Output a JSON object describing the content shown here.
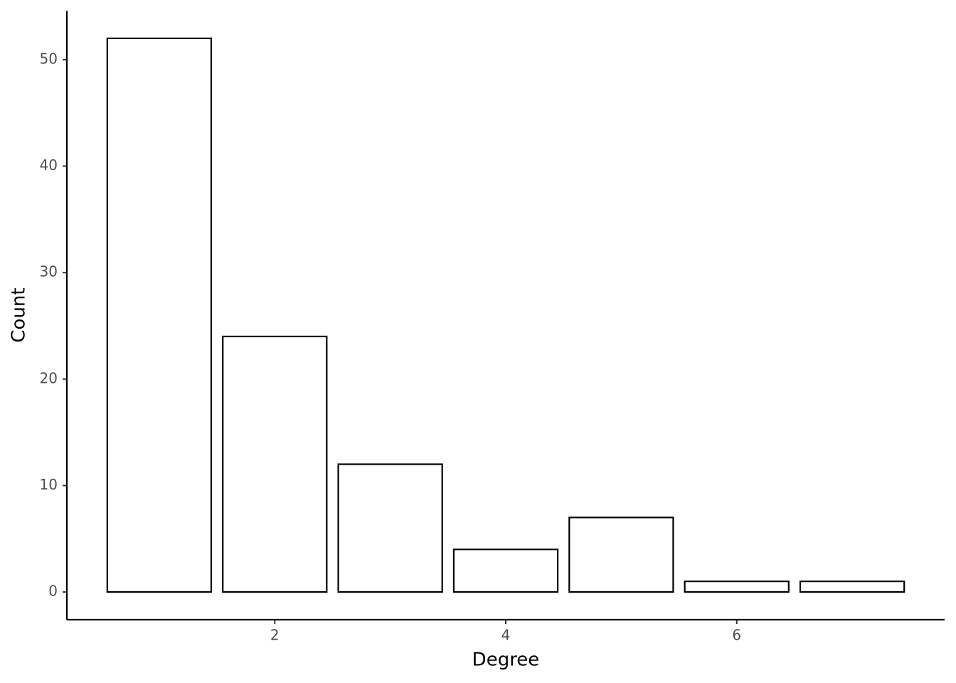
{
  "chart_data": {
    "type": "bar",
    "x_label": "Degree",
    "y_label": "Count",
    "x": [
      1,
      2,
      3,
      4,
      5,
      6,
      7
    ],
    "values": [
      52,
      24,
      12,
      4,
      7,
      1,
      1
    ],
    "color": "#ffffff",
    "edge_color": "#000000",
    "xlim": [
      0.2,
      7.8
    ],
    "xticks": [
      2,
      4,
      6
    ],
    "ylim": [
      -2.6,
      54.6
    ],
    "yticks": [
      0,
      10,
      20,
      30,
      40,
      50
    ],
    "grid": false
  }
}
